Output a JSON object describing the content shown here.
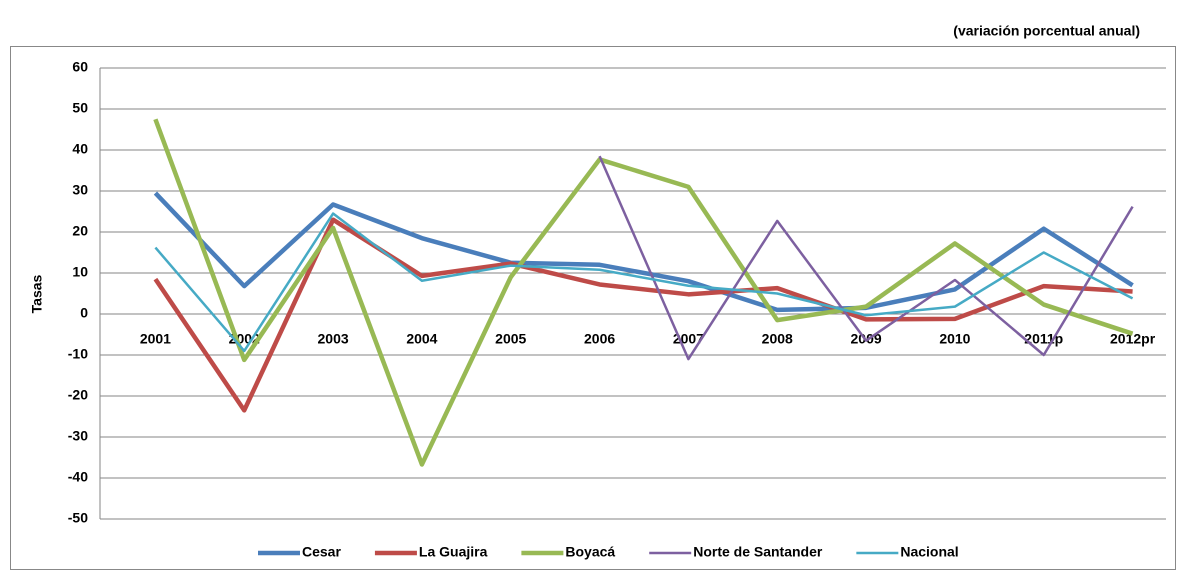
{
  "chart_data": {
    "type": "line",
    "subtitle": "(variación porcentual anual)",
    "y_label": "Tasas",
    "categories": [
      "2001",
      "2002",
      "2003",
      "2004",
      "2005",
      "2006",
      "2007",
      "2008",
      "2009",
      "2010",
      "2011p",
      "2012pr"
    ],
    "series": [
      {
        "name": "Cesar",
        "color": "#4a7ebb",
        "values": [
          29.5,
          6.8,
          26.7,
          18.5,
          12.5,
          12,
          8,
          1,
          1.5,
          6,
          20.8,
          7
        ]
      },
      {
        "name": "La Guajira",
        "color": "#be4b48",
        "values": [
          8.5,
          -23.5,
          23,
          9.3,
          12.3,
          7.2,
          4.8,
          6.3,
          -1.3,
          -1.2,
          6.8,
          5.5
        ]
      },
      {
        "name": "Boyacá",
        "color": "#98b954",
        "values": [
          47.5,
          -11.2,
          21,
          -36.7,
          9,
          37.7,
          31,
          -1.5,
          1.8,
          17.2,
          2.3,
          -4.8
        ]
      },
      {
        "name": "Norte de Santander",
        "color": "#7d60a0",
        "values": [
          null,
          null,
          null,
          null,
          null,
          38.5,
          -11,
          22.7,
          -6.5,
          8.3,
          -10,
          26.2
        ]
      },
      {
        "name": "Nacional",
        "color": "#46aac5",
        "values": [
          16.2,
          -9,
          24.5,
          8.1,
          11.8,
          10.8,
          6.9,
          5,
          -0.3,
          1.8,
          15,
          3.8
        ]
      }
    ],
    "ylim": [
      -50,
      60
    ],
    "yticks": [
      -50,
      -40,
      -30,
      -20,
      -10,
      0,
      10,
      20,
      30,
      40,
      50,
      60
    ],
    "grid": true,
    "legend": "bottom"
  }
}
